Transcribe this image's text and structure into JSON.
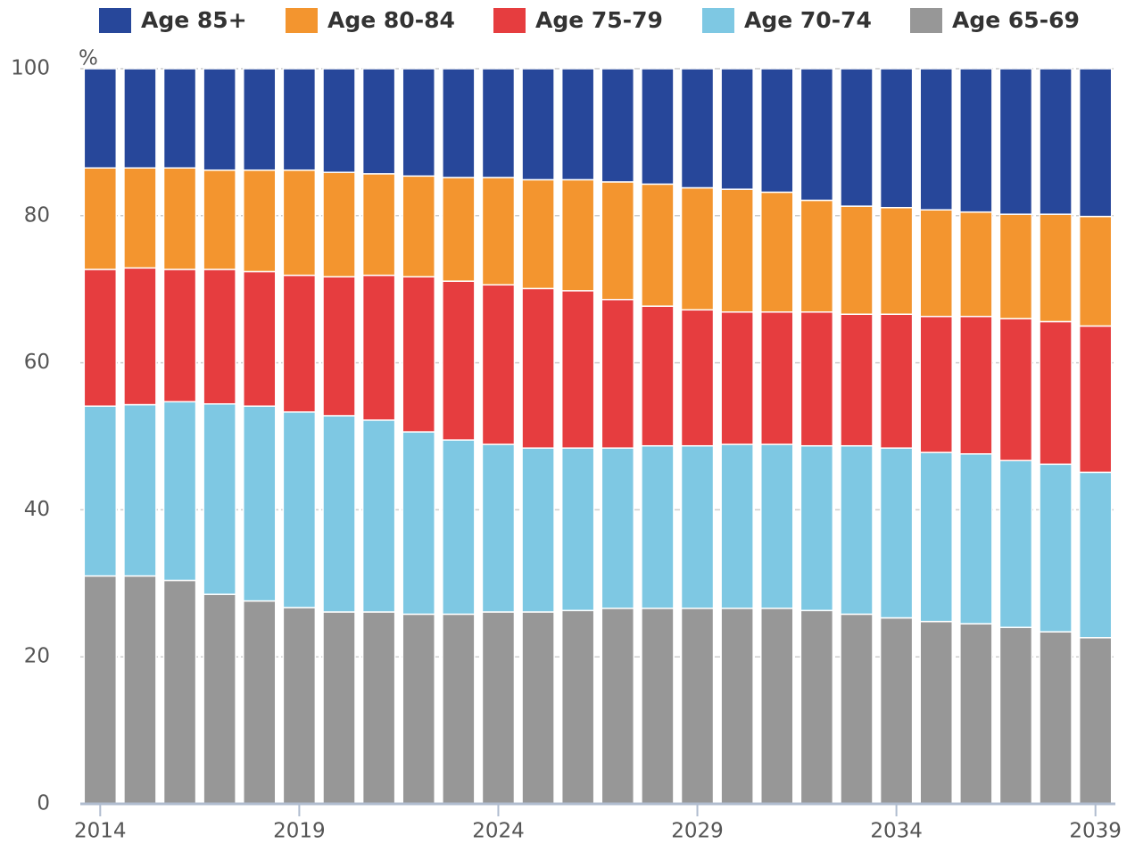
{
  "chart_data": {
    "type": "stacked_bar",
    "y_unit": "%",
    "categories": [
      "2014",
      null,
      null,
      null,
      null,
      "2019",
      null,
      null,
      null,
      null,
      "2024",
      null,
      null,
      null,
      null,
      "2029",
      null,
      null,
      null,
      null,
      "2034",
      null,
      null,
      null,
      null,
      "2039"
    ],
    "series": [
      {
        "name": "Age 85+",
        "color": "#27479a",
        "values": [
          13.5,
          13.5,
          13.5,
          13.8,
          13.8,
          13.8,
          14.1,
          14.3,
          14.6,
          14.8,
          14.8,
          15.1,
          15.1,
          15.4,
          15.7,
          16.2,
          16.4,
          16.8,
          17.9,
          18.7,
          18.9,
          19.2,
          19.5,
          19.8,
          19.8,
          20.1
        ]
      },
      {
        "name": "Age 80-84",
        "color": "#f3952f",
        "values": [
          13.8,
          13.6,
          13.8,
          13.5,
          13.8,
          14.3,
          14.2,
          13.8,
          13.7,
          14.1,
          14.6,
          14.8,
          15.1,
          16.0,
          16.6,
          16.6,
          16.7,
          16.3,
          15.2,
          14.7,
          14.5,
          14.5,
          14.2,
          14.2,
          14.6,
          14.9
        ]
      },
      {
        "name": "Age 75-79",
        "color": "#e63d3f",
        "values": [
          18.6,
          18.6,
          18.0,
          18.3,
          18.3,
          18.6,
          18.9,
          19.7,
          21.1,
          21.6,
          21.7,
          21.7,
          21.4,
          20.2,
          19.0,
          18.5,
          18.0,
          18.0,
          18.2,
          17.9,
          18.2,
          18.5,
          18.7,
          19.3,
          19.4,
          19.9
        ]
      },
      {
        "name": "Age 70-74",
        "color": "#7ec8e3",
        "values": [
          23.1,
          23.3,
          24.3,
          25.9,
          26.5,
          26.6,
          26.7,
          26.1,
          24.8,
          23.7,
          22.8,
          22.3,
          22.1,
          21.8,
          22.1,
          22.1,
          22.3,
          22.3,
          22.4,
          22.9,
          23.1,
          23.0,
          23.1,
          22.7,
          22.8,
          22.5
        ]
      },
      {
        "name": "Age 65-69",
        "color": "#979797",
        "values": [
          31,
          31,
          30.4,
          28.5,
          27.6,
          26.7,
          26.1,
          26.1,
          25.8,
          25.8,
          26.1,
          26.1,
          26.3,
          26.6,
          26.6,
          26.6,
          26.6,
          26.6,
          26.3,
          25.8,
          25.3,
          24.8,
          24.5,
          24.0,
          23.4,
          22.6
        ]
      }
    ],
    "ylim": [
      0,
      100
    ],
    "yticks": [
      0,
      20,
      40,
      60,
      80,
      100
    ],
    "grid": true,
    "legend": "top"
  }
}
